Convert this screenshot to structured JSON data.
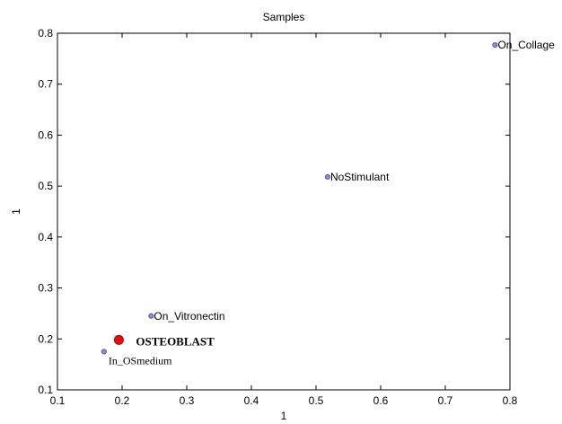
{
  "chart_data": {
    "type": "scatter",
    "title": "Samples",
    "xlabel": "1",
    "ylabel": "1",
    "xlim": [
      0.1,
      0.8
    ],
    "ylim": [
      0.1,
      0.8
    ],
    "xticks": [
      "0.1",
      "0.2",
      "0.3",
      "0.4",
      "0.5",
      "0.6",
      "0.7",
      "0.8"
    ],
    "yticks": [
      "0.1",
      "0.2",
      "0.3",
      "0.4",
      "0.5",
      "0.6",
      "0.7",
      "0.8"
    ],
    "grid": false,
    "points": [
      {
        "label": "On_Collage",
        "x": 0.777,
        "y": 0.777,
        "color": "#5a5aa0",
        "style": "plain"
      },
      {
        "label": "NoStimulant",
        "x": 0.518,
        "y": 0.518,
        "color": "#5a5aa0",
        "style": "plain"
      },
      {
        "label": "On_Vitronectin",
        "x": 0.245,
        "y": 0.245,
        "color": "#5a5aa0",
        "style": "plain"
      },
      {
        "label": "OSTEOBLAST",
        "x": 0.195,
        "y": 0.198,
        "color": "#e01010",
        "style": "highlight"
      },
      {
        "label": "In_OSmedium",
        "x": 0.172,
        "y": 0.175,
        "color": "#5a5aa0",
        "style": "serif"
      }
    ]
  }
}
